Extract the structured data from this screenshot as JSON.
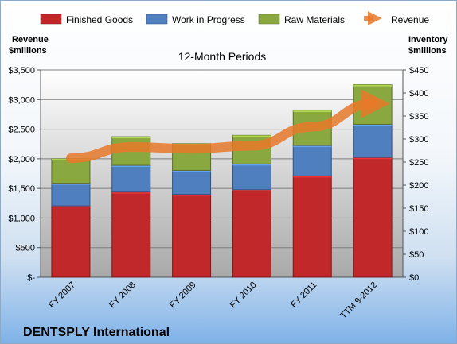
{
  "chart_data": {
    "type": "bar",
    "stacked": true,
    "subtitle": "12-Month Periods",
    "company": "DENTSPLY International",
    "left_axis_title": [
      "Revenue",
      "$millions"
    ],
    "right_axis_title": [
      "Inventory",
      "$millions"
    ],
    "categories": [
      "FY 2007",
      "FY 2008",
      "FY 2009",
      "FY 2010",
      "FY 2011",
      "TTM 9-2012"
    ],
    "series": [
      {
        "name": "Finished Goods",
        "color": "#c0282a",
        "values": [
          155,
          185,
          180,
          190,
          220,
          260
        ]
      },
      {
        "name": "Work in Progress",
        "color": "#4f7fbf",
        "values": [
          49,
          58,
          52,
          56,
          66,
          72
        ]
      },
      {
        "name": "Raw Materials",
        "color": "#8aa840",
        "values": [
          53,
          62,
          58,
          62,
          76,
          86
        ]
      }
    ],
    "line_series": {
      "name": "Revenue",
      "color": "#e8792a",
      "values": [
        2010,
        2200,
        2170,
        2220,
        2540,
        2930
      ]
    },
    "left_axis": {
      "min": 0,
      "max": 3500,
      "step": 500,
      "tick_labels": [
        "$-",
        "$500",
        "$1,000",
        "$1,500",
        "$2,000",
        "$2,500",
        "$3,000",
        "$3,500"
      ]
    },
    "right_axis": {
      "min": 0,
      "max": 450,
      "step": 50,
      "tick_labels": [
        "$0",
        "$50",
        "$100",
        "$150",
        "$200",
        "$250",
        "$300",
        "$350",
        "$400",
        "$450"
      ]
    },
    "grid": true,
    "legend_position": "top"
  }
}
